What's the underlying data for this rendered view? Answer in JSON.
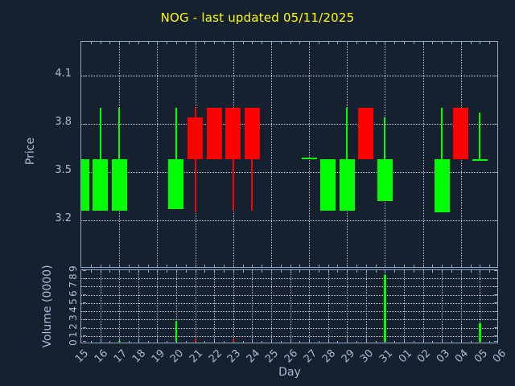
{
  "title": "NOG - last updated 05/11/2025",
  "colors": {
    "background": "#15212e",
    "title": "#ffff00",
    "axis_border": "#8fa9c9",
    "grid": "#c7cdd6",
    "tick_label": "#a7bad7",
    "up": "#00ff00",
    "down": "#ff0000"
  },
  "axes": {
    "price_label": "Price",
    "volume_label": "Volume (0000)",
    "day_label": "Day",
    "price_ticks": [
      "3.2",
      "3.5",
      "3.8",
      "4.1"
    ],
    "volume_ticks": [
      "0",
      "1",
      "2",
      "3",
      "4",
      "5",
      "6",
      "7",
      "8",
      "9"
    ],
    "day_ticks": [
      "15",
      "16",
      "17",
      "18",
      "19",
      "20",
      "21",
      "22",
      "23",
      "24",
      "25",
      "26",
      "27",
      "28",
      "29",
      "30",
      "31",
      "01",
      "02",
      "03",
      "04",
      "05",
      "06"
    ]
  },
  "chart_data": [
    {
      "type": "candlestick",
      "panel": "price",
      "title": "NOG - last updated 05/11/2025",
      "xlabel": "Day",
      "ylabel": "Price",
      "ylim": [
        2.9,
        4.31
      ],
      "yticks": [
        3.2,
        3.5,
        3.8,
        4.1
      ],
      "categories": [
        "15",
        "16",
        "17",
        "18",
        "19",
        "20",
        "21",
        "22",
        "23",
        "24",
        "25",
        "26",
        "27",
        "28",
        "29",
        "30",
        "31",
        "01",
        "02",
        "03",
        "04",
        "05",
        "06"
      ],
      "grid": "dotted",
      "candles": [
        {
          "day": "15",
          "open": 3.26,
          "high": 3.58,
          "low": 3.26,
          "close": 3.58,
          "direction": "up"
        },
        {
          "day": "16",
          "open": 3.26,
          "high": 3.9,
          "low": 3.26,
          "close": 3.58,
          "direction": "up"
        },
        {
          "day": "17",
          "open": 3.26,
          "high": 3.9,
          "low": 3.26,
          "close": 3.58,
          "direction": "up"
        },
        {
          "day": "20",
          "open": 3.27,
          "high": 3.9,
          "low": 3.27,
          "close": 3.58,
          "direction": "up"
        },
        {
          "day": "21",
          "open": 3.84,
          "high": 3.9,
          "low": 3.25,
          "close": 3.58,
          "direction": "down"
        },
        {
          "day": "22",
          "open": 3.9,
          "high": 3.9,
          "low": 3.58,
          "close": 3.58,
          "direction": "down"
        },
        {
          "day": "23",
          "open": 3.9,
          "high": 3.9,
          "low": 3.26,
          "close": 3.58,
          "direction": "down"
        },
        {
          "day": "24",
          "open": 3.9,
          "high": 3.9,
          "low": 3.26,
          "close": 3.58,
          "direction": "down"
        },
        {
          "day": "27",
          "open": 3.58,
          "high": 3.59,
          "low": 3.58,
          "close": 3.59,
          "direction": "up"
        },
        {
          "day": "28",
          "open": 3.26,
          "high": 3.58,
          "low": 3.26,
          "close": 3.58,
          "direction": "up"
        },
        {
          "day": "29",
          "open": 3.26,
          "high": 3.9,
          "low": 3.26,
          "close": 3.58,
          "direction": "up"
        },
        {
          "day": "30",
          "open": 3.9,
          "high": 3.9,
          "low": 3.58,
          "close": 3.58,
          "direction": "down"
        },
        {
          "day": "31",
          "open": 3.32,
          "high": 3.84,
          "low": 3.32,
          "close": 3.58,
          "direction": "up"
        },
        {
          "day": "03",
          "open": 3.25,
          "high": 3.9,
          "low": 3.25,
          "close": 3.58,
          "direction": "up"
        },
        {
          "day": "04",
          "open": 3.9,
          "high": 3.9,
          "low": 3.58,
          "close": 3.58,
          "direction": "down"
        },
        {
          "day": "05",
          "open": 3.57,
          "high": 3.87,
          "low": 3.57,
          "close": 3.58,
          "direction": "up"
        }
      ]
    },
    {
      "type": "bar",
      "panel": "volume",
      "ylabel": "Volume (0000)",
      "ylim": [
        0,
        9
      ],
      "yticks": [
        0,
        1,
        2,
        3,
        4,
        5,
        6,
        7,
        8,
        9
      ],
      "categories": [
        "15",
        "16",
        "17",
        "18",
        "19",
        "20",
        "21",
        "22",
        "23",
        "24",
        "25",
        "26",
        "27",
        "28",
        "29",
        "30",
        "31",
        "01",
        "02",
        "03",
        "04",
        "05",
        "06"
      ],
      "bars": [
        {
          "day": "17",
          "value": 0.4,
          "direction": "up"
        },
        {
          "day": "20",
          "value": 2.8,
          "direction": "up"
        },
        {
          "day": "21",
          "value": 0.6,
          "direction": "down"
        },
        {
          "day": "22",
          "value": 0.25,
          "direction": "down"
        },
        {
          "day": "23",
          "value": 0.6,
          "direction": "down"
        },
        {
          "day": "29",
          "value": 0.2,
          "direction": "up"
        },
        {
          "day": "31",
          "value": 8.4,
          "direction": "up"
        },
        {
          "day": "03",
          "value": 0.3,
          "direction": "up"
        },
        {
          "day": "05",
          "value": 2.5,
          "direction": "up"
        }
      ]
    }
  ]
}
